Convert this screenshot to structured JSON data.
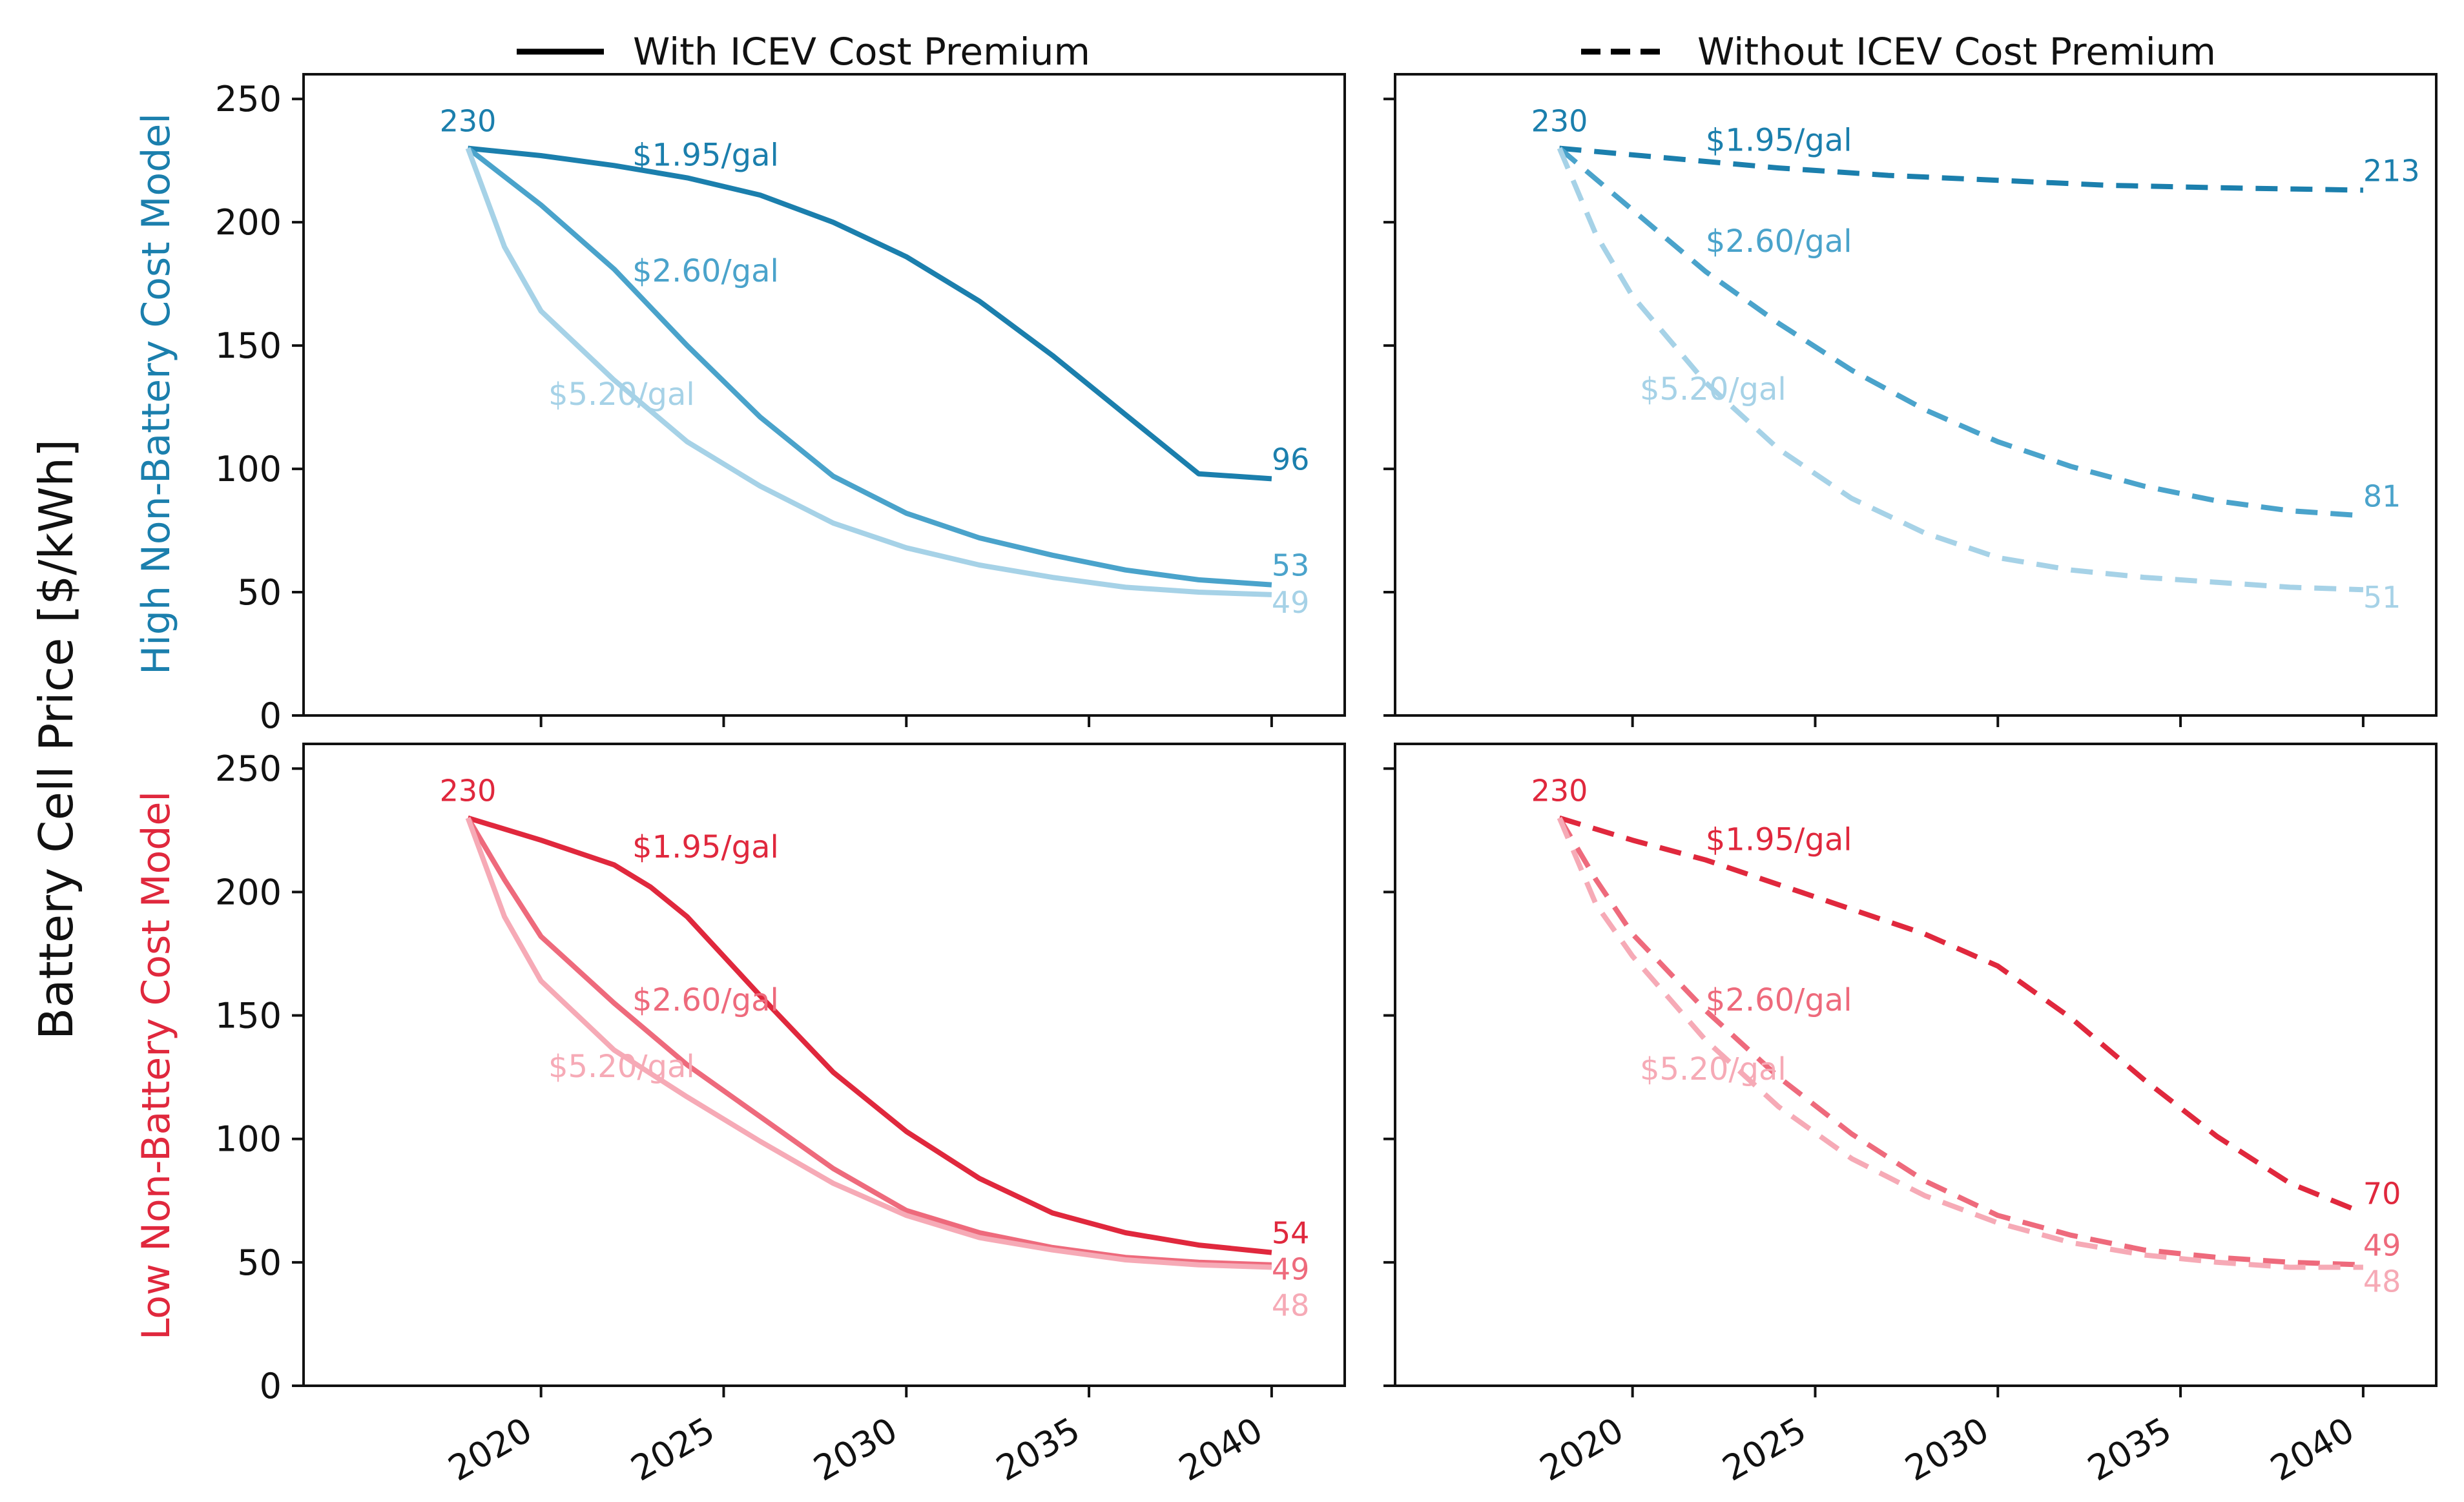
{
  "legend": [
    {
      "label": "With ICEV Cost Premium",
      "dash": "solid"
    },
    {
      "label": "Without ICEV Cost Premium",
      "dash": "dashed"
    }
  ],
  "ylabel": "Battery Cell Price [$/kWh]",
  "row_labels": [
    {
      "text": "High Non-Battery Cost Model",
      "color": "#1b7fad"
    },
    {
      "text": "Low Non-Battery Cost Model",
      "color": "#e0283d"
    }
  ],
  "chart_data": [
    {
      "type": "line",
      "row": 0,
      "col": 0,
      "style": "solid",
      "xlim": [
        2013.5,
        2042
      ],
      "ylim": [
        0,
        260
      ],
      "xticks": [
        2020,
        2025,
        2030,
        2035,
        2040
      ],
      "yticks": [
        0,
        50,
        100,
        150,
        200,
        250
      ],
      "start_label": "230",
      "series": [
        {
          "name": "$1.95/gal",
          "color": "#1b7fad",
          "end_label": "96",
          "label_at": [
            2022.5,
            223
          ],
          "x": [
            2018,
            2020,
            2022,
            2024,
            2026,
            2028,
            2030,
            2032,
            2034,
            2036,
            2038,
            2040
          ],
          "y": [
            230,
            227,
            223,
            218,
            211,
            200,
            186,
            168,
            146,
            122,
            98,
            96
          ]
        },
        {
          "name": "$2.60/gal",
          "color": "#4aa3cb",
          "end_label": "53",
          "label_at": [
            2022.5,
            176
          ],
          "x": [
            2018,
            2020,
            2022,
            2024,
            2026,
            2028,
            2030,
            2032,
            2034,
            2036,
            2038,
            2040
          ],
          "y": [
            230,
            207,
            181,
            150,
            121,
            97,
            82,
            72,
            65,
            59,
            55,
            53
          ]
        },
        {
          "name": "$5.20/gal",
          "color": "#a6d2e7",
          "end_label": "49",
          "label_at": [
            2020.2,
            126
          ],
          "x": [
            2018,
            2019,
            2020,
            2022,
            2024,
            2026,
            2028,
            2030,
            2032,
            2034,
            2036,
            2038,
            2040
          ],
          "y": [
            230,
            190,
            164,
            136,
            111,
            93,
            78,
            68,
            61,
            56,
            52,
            50,
            49
          ]
        }
      ]
    },
    {
      "type": "line",
      "row": 0,
      "col": 1,
      "style": "dashed",
      "xlim": [
        2013.5,
        2042
      ],
      "ylim": [
        0,
        260
      ],
      "xticks": [
        2020,
        2025,
        2030,
        2035,
        2040
      ],
      "yticks": [
        0,
        50,
        100,
        150,
        200,
        250
      ],
      "start_label": "230",
      "series": [
        {
          "name": "$1.95/gal",
          "color": "#1b7fad",
          "end_label": "213",
          "label_at": [
            2022,
            229
          ],
          "x": [
            2018,
            2021,
            2024,
            2027,
            2030,
            2033,
            2036,
            2040
          ],
          "y": [
            230,
            226,
            222,
            219,
            217,
            215,
            214,
            213
          ]
        },
        {
          "name": "$2.60/gal",
          "color": "#4aa3cb",
          "end_label": "81",
          "label_at": [
            2022,
            188
          ],
          "x": [
            2018,
            2020,
            2022,
            2024,
            2026,
            2028,
            2030,
            2032,
            2034,
            2036,
            2038,
            2040
          ],
          "y": [
            230,
            205,
            180,
            159,
            140,
            124,
            111,
            101,
            93,
            87,
            83,
            81
          ]
        },
        {
          "name": "$5.20/gal",
          "color": "#a6d2e7",
          "end_label": "51",
          "label_at": [
            2020.2,
            128
          ],
          "x": [
            2018,
            2019,
            2020,
            2022,
            2024,
            2026,
            2028,
            2030,
            2032,
            2034,
            2036,
            2038,
            2040
          ],
          "y": [
            230,
            195,
            170,
            135,
            108,
            88,
            74,
            64,
            59,
            56,
            54,
            52,
            51
          ]
        }
      ]
    },
    {
      "type": "line",
      "row": 1,
      "col": 0,
      "style": "solid",
      "xlim": [
        2013.5,
        2042
      ],
      "ylim": [
        0,
        260
      ],
      "xticks": [
        2020,
        2025,
        2030,
        2035,
        2040
      ],
      "yticks": [
        0,
        50,
        100,
        150,
        200,
        250
      ],
      "start_label": "230",
      "series": [
        {
          "name": "$1.95/gal",
          "color": "#e0283d",
          "end_label": "54",
          "label_at": [
            2022.5,
            214
          ],
          "x": [
            2018,
            2020,
            2022,
            2023,
            2024,
            2026,
            2028,
            2030,
            2032,
            2034,
            2036,
            2038,
            2040
          ],
          "y": [
            230,
            221,
            211,
            202,
            190,
            158,
            127,
            103,
            84,
            70,
            62,
            57,
            54
          ]
        },
        {
          "name": "$2.60/gal",
          "color": "#ee6a7c",
          "end_label": "49",
          "label_at": [
            2022.5,
            152
          ],
          "x": [
            2018,
            2019,
            2020,
            2022,
            2024,
            2026,
            2028,
            2030,
            2032,
            2034,
            2036,
            2038,
            2040
          ],
          "y": [
            230,
            205,
            182,
            155,
            130,
            109,
            88,
            71,
            62,
            56,
            52,
            50,
            49
          ]
        },
        {
          "name": "$5.20/gal",
          "color": "#f6aab6",
          "end_label": "48",
          "label_at": [
            2020.2,
            125
          ],
          "x": [
            2018,
            2019,
            2020,
            2022,
            2024,
            2026,
            2028,
            2030,
            2032,
            2034,
            2036,
            2038,
            2040
          ],
          "y": [
            230,
            190,
            164,
            136,
            117,
            99,
            82,
            69,
            60,
            55,
            51,
            49,
            48
          ]
        }
      ]
    },
    {
      "type": "line",
      "row": 1,
      "col": 1,
      "style": "dashed",
      "xlim": [
        2013.5,
        2042
      ],
      "ylim": [
        0,
        260
      ],
      "xticks": [
        2020,
        2025,
        2030,
        2035,
        2040
      ],
      "yticks": [
        0,
        50,
        100,
        150,
        200,
        250
      ],
      "start_label": "230",
      "series": [
        {
          "name": "$1.95/gal",
          "color": "#e0283d",
          "end_label": "70",
          "label_at": [
            2022,
            217
          ],
          "x": [
            2018,
            2020,
            2022,
            2024,
            2026,
            2028,
            2030,
            2032,
            2034,
            2036,
            2038,
            2040
          ],
          "y": [
            230,
            221,
            213,
            203,
            193,
            183,
            170,
            149,
            124,
            101,
            82,
            70
          ]
        },
        {
          "name": "$2.60/gal",
          "color": "#ee6a7c",
          "end_label": "49",
          "label_at": [
            2022,
            152
          ],
          "x": [
            2018,
            2019,
            2020,
            2022,
            2024,
            2026,
            2028,
            2030,
            2032,
            2034,
            2036,
            2038,
            2040
          ],
          "y": [
            230,
            205,
            183,
            152,
            125,
            102,
            83,
            69,
            61,
            55,
            52,
            50,
            49
          ]
        },
        {
          "name": "$5.20/gal",
          "color": "#f6aab6",
          "end_label": "48",
          "label_at": [
            2020.2,
            124
          ],
          "x": [
            2018,
            2019,
            2020,
            2022,
            2024,
            2026,
            2028,
            2030,
            2032,
            2034,
            2036,
            2038,
            2040
          ],
          "y": [
            230,
            195,
            174,
            140,
            113,
            92,
            77,
            66,
            58,
            53,
            50,
            48,
            48
          ]
        }
      ]
    }
  ]
}
